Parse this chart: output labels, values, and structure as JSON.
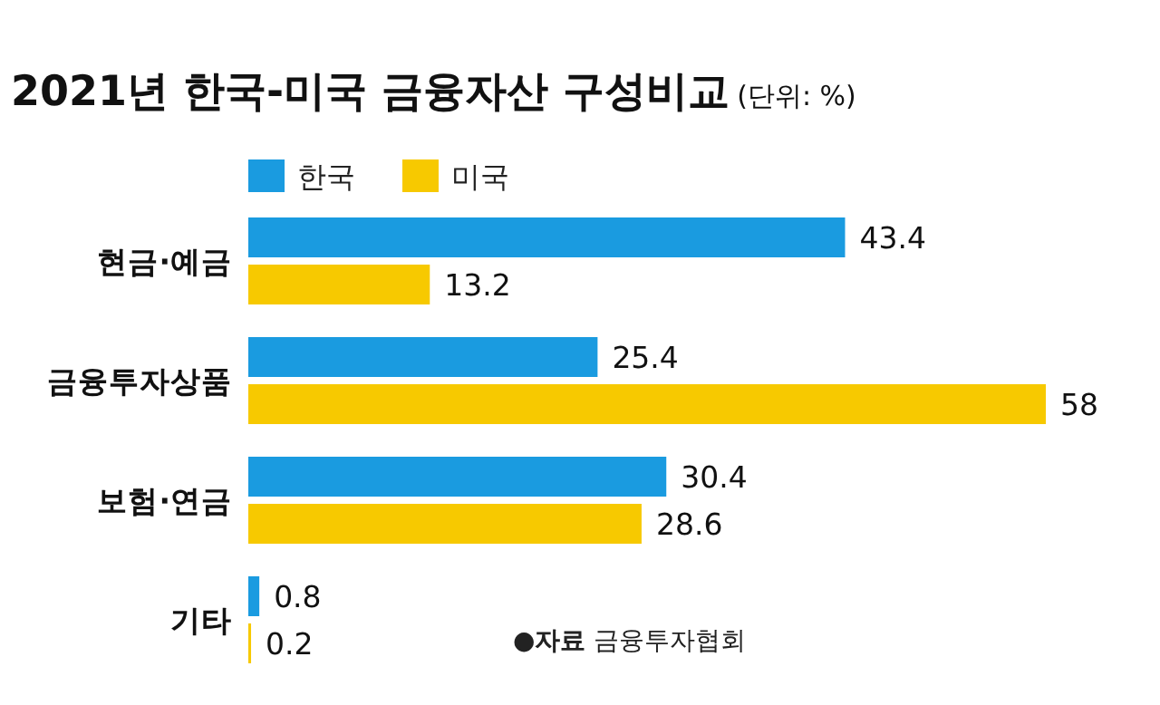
{
  "chart_data": {
    "type": "bar",
    "orientation": "horizontal",
    "title": "2021년 한국-미국 금융자산 구성비교",
    "subtitle": "(단위: %)",
    "categories": [
      "현금·예금",
      "금융투자상품",
      "보험·연금",
      "기타"
    ],
    "series": [
      {
        "name": "한국",
        "color": "#1a9be0",
        "values": [
          43.4,
          25.4,
          30.4,
          0.8
        ]
      },
      {
        "name": "미국",
        "color": "#f7c900",
        "values": [
          13.2,
          58,
          28.6,
          0.2
        ]
      }
    ],
    "data_labels": true,
    "legend": "top left",
    "annotations": [
      "●**자료** 금융투자협회"
    ]
  }
}
